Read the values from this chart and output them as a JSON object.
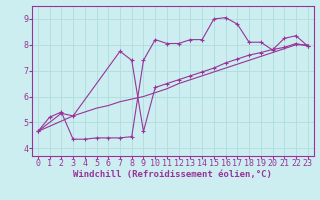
{
  "background_color": "#cceef0",
  "grid_color": "#aadddd",
  "line_color": "#993399",
  "marker_color": "#993399",
  "xlabel": "Windchill (Refroidissement éolien,°C)",
  "xlabel_fontsize": 6.5,
  "ylim": [
    3.7,
    9.5
  ],
  "xlim": [
    -0.5,
    23.5
  ],
  "series1_x": [
    0,
    1,
    2,
    3,
    4,
    5,
    6,
    7,
    8,
    9,
    10,
    11,
    12,
    13,
    14,
    15,
    16,
    17,
    18,
    19,
    20,
    21,
    22,
    23
  ],
  "series1_y": [
    4.65,
    5.2,
    5.4,
    4.35,
    4.35,
    4.4,
    4.4,
    4.4,
    4.45,
    7.4,
    8.2,
    8.05,
    8.05,
    8.2,
    8.2,
    9.0,
    9.05,
    8.8,
    8.1,
    8.1,
    7.8,
    8.25,
    8.35,
    7.95
  ],
  "series2_x": [
    0,
    1,
    2,
    3,
    4,
    5,
    6,
    7,
    8,
    9,
    10,
    11,
    12,
    13,
    14,
    15,
    16,
    17,
    18,
    19,
    20,
    21,
    22,
    23
  ],
  "series2_y": [
    4.65,
    4.85,
    5.05,
    5.25,
    5.4,
    5.55,
    5.65,
    5.8,
    5.9,
    6.0,
    6.15,
    6.3,
    6.5,
    6.65,
    6.8,
    6.95,
    7.1,
    7.25,
    7.4,
    7.55,
    7.7,
    7.85,
    8.0,
    8.0
  ],
  "series3_x": [
    0,
    2,
    3,
    7,
    8,
    9,
    10,
    11,
    12,
    13,
    14,
    15,
    16,
    17,
    18,
    19,
    20,
    21,
    22,
    23
  ],
  "series3_y": [
    4.65,
    5.35,
    5.25,
    7.75,
    7.4,
    4.65,
    6.35,
    6.5,
    6.65,
    6.8,
    6.95,
    7.1,
    7.3,
    7.45,
    7.6,
    7.7,
    7.82,
    7.9,
    8.05,
    7.95
  ],
  "tick_fontsize": 6.0,
  "lw": 0.8,
  "ms": 2.2
}
